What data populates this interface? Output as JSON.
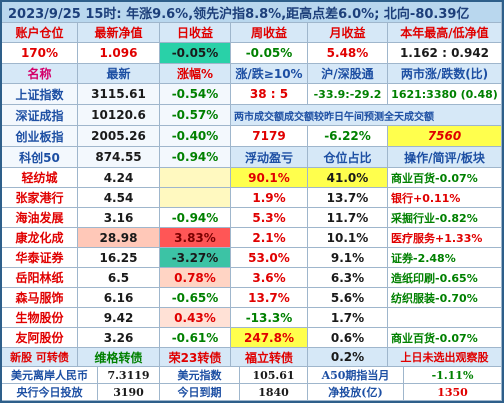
{
  "header": {
    "title": "2023/9/25  15时: 年涨9.6%,领先沪指8.8%,距高点差6.0%; 北向-80.39亿"
  },
  "account": {
    "labels": [
      "账户仓位",
      "最新净值",
      "日收益",
      "周收益",
      "月收益",
      "本年最高/低净值"
    ],
    "values": [
      "170%",
      "1.096",
      "-0.05%",
      "-0.05%",
      "5.48%",
      "1.162 : 0.942"
    ]
  },
  "index_header": {
    "name": "名称",
    "latest": "最新",
    "change": "涨幅%",
    "ratio_label": "涨/跌≥10%",
    "turnover_label": "沪/深股通",
    "adv_dec_label": "两市涨/跌数(比)"
  },
  "indices": [
    {
      "name": "上证指数",
      "latest": "3115.61",
      "change": "-0.54%"
    },
    {
      "name": "深证成指",
      "latest": "10120.6",
      "change": "-0.57%"
    },
    {
      "name": "创业板指",
      "latest": "2005.26",
      "change": "-0.40%"
    },
    {
      "name": "科创50",
      "latest": "874.55",
      "change": "-0.94%"
    }
  ],
  "market": {
    "up_down_10": "38 : 5",
    "hk_connect": "-33.9:-29.2",
    "adv_dec": "1621:3380 (0.48)",
    "volume_label": "两市成交额成交额较昨日午间预测全天成交额",
    "volume": "7179",
    "volume_change": "-6.22%",
    "forecast": "7560"
  },
  "holdings_header": {
    "float_pnl": "浮动盈亏",
    "position": "仓位占比",
    "ops": "操作/简评/板块"
  },
  "holdings": [
    {
      "name": "轻纺城",
      "latest": "4.24",
      "change": "",
      "pnl": "90.1%",
      "position": "41.0%",
      "note": "商业百货-0.07%"
    },
    {
      "name": "张家港行",
      "latest": "4.54",
      "change": "",
      "pnl": "1.9%",
      "position": "13.7%",
      "note": "银行+0.11%"
    },
    {
      "name": "海油发展",
      "latest": "3.16",
      "change": "-0.94%",
      "pnl": "5.3%",
      "position": "11.7%",
      "note": "采掘行业-0.82%"
    },
    {
      "name": "康龙化成",
      "latest": "28.98",
      "change": "3.83%",
      "pnl": "2.1%",
      "position": "10.1%",
      "note": "医疗服务+1.33%"
    },
    {
      "name": "华泰证券",
      "latest": "16.25",
      "change": "-3.27%",
      "pnl": "53.0%",
      "position": "9.1%",
      "note": "证券-2.48%"
    },
    {
      "name": "岳阳林纸",
      "latest": "6.5",
      "change": "0.78%",
      "pnl": "3.6%",
      "position": "6.3%",
      "note": "造纸印刷-0.65%"
    },
    {
      "name": "森马服饰",
      "latest": "6.16",
      "change": "-0.65%",
      "pnl": "13.7%",
      "position": "5.6%",
      "note": "纺织服装-0.70%"
    },
    {
      "name": "生物股份",
      "latest": "9.42",
      "change": "0.43%",
      "pnl": "-13.3%",
      "position": "1.7%",
      "note": ""
    },
    {
      "name": "友阿股份",
      "latest": "3.26",
      "change": "-0.61%",
      "pnl": "247.8%",
      "position": "0.6%",
      "note": "商业百货-0.07%"
    }
  ],
  "bond_row": {
    "name": "新股 可转债",
    "c2": "维格转债",
    "c3": "荣23转债",
    "c4": "福立转债",
    "c5": "0.2%",
    "c6": "上日未选出观察股"
  },
  "footer": {
    "row1": [
      "美元离岸人民币",
      "7.3119",
      "美元指数",
      "105.61",
      "A50期指当月",
      "-1.11%"
    ],
    "row2": [
      "央行今日投放",
      "3190",
      "今日到期",
      "1840",
      "净投放(亿)",
      "1350"
    ]
  }
}
